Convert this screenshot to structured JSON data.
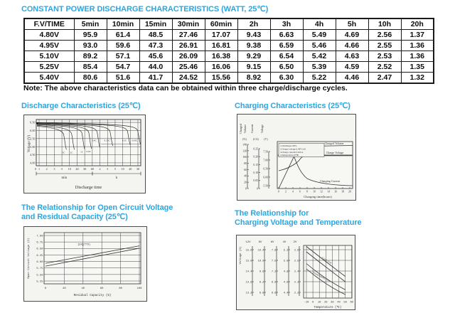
{
  "page": {
    "title": "CONSTANT POWER DISCHARGE CHARACTERISTICS (WATT, 25℃)",
    "note": "Note: The above characteristics data can be obtained within three charge/discharge cycles.",
    "accent_color": "#2aa7e0",
    "ink_color": "#333333"
  },
  "table": {
    "headers": [
      "F.V/TIME",
      "5min",
      "10min",
      "15min",
      "30min",
      "60min",
      "2h",
      "3h",
      "4h",
      "5h",
      "10h",
      "20h"
    ],
    "rows": [
      [
        "4.80V",
        "95.9",
        "61.4",
        "48.5",
        "27.46",
        "17.07",
        "9.43",
        "6.63",
        "5.49",
        "4.69",
        "2.56",
        "1.37"
      ],
      [
        "4.95V",
        "93.0",
        "59.6",
        "47.3",
        "26.91",
        "16.81",
        "9.38",
        "6.59",
        "5.46",
        "4.66",
        "2.55",
        "1.36"
      ],
      [
        "5.10V",
        "89.2",
        "57.1",
        "45.6",
        "26.09",
        "16.38",
        "9.29",
        "6.54",
        "5.42",
        "4.63",
        "2.53",
        "1.36"
      ],
      [
        "5.25V",
        "85.4",
        "54.7",
        "44.0",
        "25.46",
        "16.06",
        "9.15",
        "6.50",
        "5.39",
        "4.59",
        "2.52",
        "1.35"
      ],
      [
        "5.40V",
        "80.6",
        "51.6",
        "41.7",
        "24.52",
        "15.56",
        "8.92",
        "6.30",
        "5.22",
        "4.46",
        "2.47",
        "1.32"
      ]
    ]
  },
  "chart_data": [
    {
      "type": "line",
      "title": "Discharge Characteristics (25℃)",
      "ylabel": "Voltage (V)",
      "yticks": [
        "6.50",
        "6.00",
        "5.50",
        "5.00",
        "4.50",
        "4.00"
      ],
      "ylim": [
        3.8,
        6.7
      ],
      "x_axis": {
        "min_ticks": [
          "1",
          "2",
          "3",
          "5",
          "10",
          "20",
          "30",
          "60"
        ],
        "h_ticks": [
          "2",
          "3",
          "5",
          "10",
          "20",
          "30"
        ],
        "group_labels": [
          "min",
          "h"
        ],
        "xlabel": "Discharge time"
      },
      "series": [
        {
          "label": "3C",
          "knee_pos": 3.5,
          "v_start": 6.27,
          "v_end": 4.82,
          "label_at": "foot"
        },
        {
          "label": "2C",
          "knee_pos": 4.55,
          "v_start": 6.31,
          "v_end": 4.82,
          "label_at": "foot"
        },
        {
          "label": "1C",
          "knee_pos": 5.9,
          "v_start": 6.36,
          "v_end": 4.85,
          "label_at": "foot"
        },
        {
          "label": "0.6C",
          "knee_pos": 6.8,
          "v_start": 6.4,
          "v_end": 4.88,
          "label_at": "foot"
        },
        {
          "label": "0.4C",
          "knee_pos": 7.9,
          "v_start": 6.43,
          "v_end": 4.95,
          "label_at": "side"
        },
        {
          "label": "0.25C",
          "knee_pos": 9.6,
          "v_start": 6.45,
          "v_end": 5.05,
          "label_at": "side"
        },
        {
          "label": "0.1C",
          "knee_pos": 11.9,
          "v_start": 6.47,
          "v_end": 5.1,
          "label_at": "side"
        },
        {
          "label": "0.05C",
          "knee_pos": 13.25,
          "v_start": 6.49,
          "v_end": 5.15,
          "label_at": "side"
        }
      ]
    },
    {
      "type": "line",
      "title": "Charging Characteristics (25℃)",
      "axes": [
        {
          "name": "Charged Volume",
          "unit": "(%)",
          "ticks": [
            "140",
            "120",
            "100",
            "80",
            "60",
            "40",
            "20",
            "0"
          ]
        },
        {
          "name": "Current",
          "unit": "(CA)",
          "ticks": [
            "0.25",
            "0.20",
            "0.15",
            "0.10",
            "0.05",
            "0"
          ]
        },
        {
          "name": "Voltage",
          "unit": "(V)",
          "ticks": [
            "7.50",
            "7.00",
            "6.50",
            "6.00",
            "5.50"
          ]
        }
      ],
      "xticks": [
        "0",
        "2",
        "4",
        "6",
        "8",
        "10",
        "12",
        "14",
        "16",
        "18",
        "20"
      ],
      "xlabel": "Charging time(hours)",
      "notes": [
        "1.Discharge:100%",
        "2.Charge voltage:2.40V/cell",
        "3.Charge current:0.20CA",
        "4.Temperature:25℃"
      ],
      "curve_labels": {
        "volume": "Charged Volume",
        "voltage": "Charge Voltage",
        "current": "Charging Current"
      }
    },
    {
      "type": "line",
      "title_lines": [
        "The Relationship for Open Circuit Voltage",
        "and Residual Capacity (25℃)"
      ],
      "ylabel": "Open Circuit Voltage (V)",
      "yticks": [
        "7.00",
        "6.75",
        "6.50",
        "6.25",
        "6.00",
        "5.75",
        "5.50",
        "5.25"
      ],
      "xticks": [
        "0",
        "20",
        "40",
        "60",
        "80",
        "100"
      ],
      "xlabel": "Residual Capacity (%)",
      "annotation": "25℃(77°F)",
      "series": [
        {
          "name": "upper",
          "x": [
            0,
            100
          ],
          "y": [
            5.93,
            6.6
          ]
        },
        {
          "name": "lower",
          "x": [
            0,
            100
          ],
          "y": [
            5.82,
            6.51
          ]
        }
      ]
    },
    {
      "type": "line",
      "title_lines": [
        "The Relationship for",
        "Charging Voltage and Temperature"
      ],
      "ylabel": "Voltage (V)",
      "scale_headers": [
        "12V",
        "8V",
        "6V",
        "4V",
        "2V"
      ],
      "scales": [
        [
          "15.6",
          "15.0",
          "14.4",
          "13.8",
          "13.2"
        ],
        [
          "10.4",
          "10.0",
          "9.6",
          "9.2",
          "8.8"
        ],
        [
          "7.8",
          "7.5",
          "7.2",
          "6.9",
          "6.6"
        ],
        [
          "5.2",
          "5.0",
          "4.8",
          "4.6",
          "4.4"
        ],
        [
          "2.6",
          "2.5",
          "2.4",
          "2.3",
          "2.2"
        ]
      ],
      "xticks": [
        "-10",
        "0",
        "10",
        "20",
        "30",
        "40",
        "50",
        "60"
      ],
      "xlabel": "Temperature (℃)",
      "bands": [
        {
          "label": "Cycle Use",
          "upper_2v": [
            [
              -10,
              2.63
            ],
            [
              20,
              2.5
            ],
            [
              50,
              2.35
            ]
          ],
          "lower_2v": [
            [
              -10,
              2.58
            ],
            [
              20,
              2.45
            ],
            [
              50,
              2.3
            ]
          ]
        },
        {
          "label": "Float(Standby) Use",
          "upper_2v": [
            [
              -10,
              2.47
            ],
            [
              20,
              2.33
            ],
            [
              50,
              2.225
            ]
          ],
          "lower_2v": [
            [
              -10,
              2.42
            ],
            [
              20,
              2.28
            ],
            [
              50,
              2.18
            ]
          ]
        }
      ]
    }
  ]
}
